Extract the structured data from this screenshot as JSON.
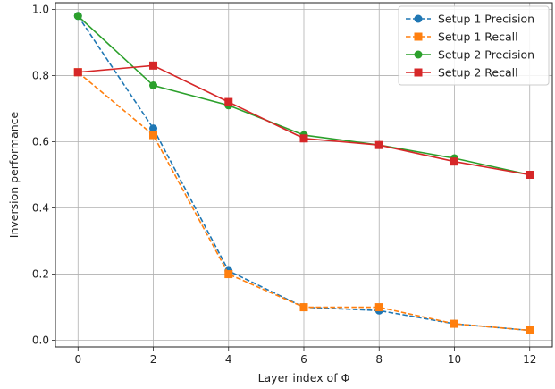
{
  "chart_data": {
    "type": "line",
    "xlabel": "Layer index of Φ",
    "ylabel": "Inversion performance",
    "xlim": [
      -0.6,
      12.6
    ],
    "ylim": [
      -0.02,
      1.02
    ],
    "x_ticks": [
      0,
      2,
      4,
      6,
      8,
      10,
      12
    ],
    "y_ticks": [
      0.0,
      0.2,
      0.4,
      0.6,
      0.8,
      1.0
    ],
    "x_tick_labels": [
      "0",
      "2",
      "4",
      "6",
      "8",
      "10",
      "12"
    ],
    "y_tick_labels": [
      "0.0",
      "0.2",
      "0.4",
      "0.6",
      "0.8",
      "1.0"
    ],
    "grid": true,
    "legend_position": "top-right",
    "x": [
      0,
      2,
      4,
      6,
      8,
      10,
      12
    ],
    "series": [
      {
        "name": "Setup 1 Precision",
        "values": [
          0.98,
          0.64,
          0.21,
          0.1,
          0.09,
          0.05,
          0.03
        ],
        "color": "#1f77b4",
        "line_style": "dashed",
        "marker": "circle"
      },
      {
        "name": "Setup 1 Recall",
        "values": [
          0.81,
          0.62,
          0.2,
          0.1,
          0.1,
          0.05,
          0.03
        ],
        "color": "#ff7f0e",
        "line_style": "dashed",
        "marker": "square"
      },
      {
        "name": "Setup 2 Precision",
        "values": [
          0.98,
          0.77,
          0.71,
          0.62,
          0.59,
          0.55,
          0.5
        ],
        "color": "#2ca02c",
        "line_style": "solid",
        "marker": "circle"
      },
      {
        "name": "Setup 2 Recall",
        "values": [
          0.81,
          0.83,
          0.72,
          0.61,
          0.59,
          0.54,
          0.5
        ],
        "color": "#d62728",
        "line_style": "solid",
        "marker": "square"
      }
    ]
  }
}
